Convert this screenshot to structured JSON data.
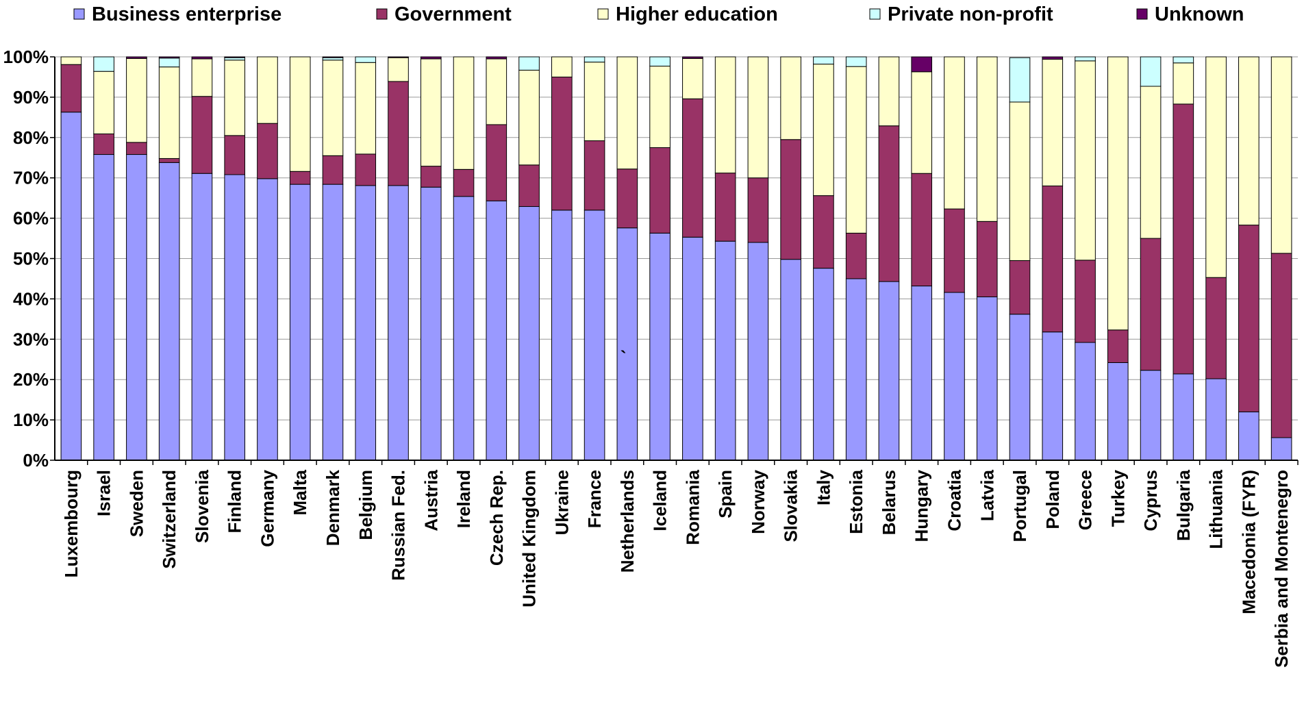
{
  "chart_data": {
    "type": "bar",
    "stacked": true,
    "percent": true,
    "categories": [
      "Luxembourg",
      "Israel",
      "Sweden",
      "Switzerland",
      "Slovenia",
      "Finland",
      "Germany",
      "Malta",
      "Denmark",
      "Belgium",
      "Russian Fed.",
      "Austria",
      "Ireland",
      "Czech Rep.",
      "United Kingdom",
      "Ukraine",
      "France",
      "Netherlands",
      "Iceland",
      "Romania",
      "Spain",
      "Norway",
      "Slovakia",
      "Italy",
      "Estonia",
      "Belarus",
      "Hungary",
      "Croatia",
      "Latvia",
      "Portugal",
      "Poland",
      "Greece",
      "Turkey",
      "Cyprus",
      "Bulgaria",
      "Lithuania",
      "Macedonia (FYR)",
      "Serbia and Montenegro"
    ],
    "series": [
      {
        "name": "Business enterprise",
        "color": "#9999ff",
        "values": [
          86.3,
          75.8,
          75.8,
          73.8,
          71.1,
          70.8,
          69.8,
          68.4,
          68.4,
          68.1,
          68.1,
          67.7,
          65.4,
          64.3,
          62.9,
          62.0,
          62.0,
          57.6,
          56.3,
          55.3,
          54.3,
          54.0,
          49.8,
          47.6,
          45.0,
          44.3,
          43.2,
          41.6,
          40.5,
          36.2,
          31.8,
          29.2,
          24.2,
          22.3,
          21.4,
          20.2,
          12.0,
          5.6
        ]
      },
      {
        "name": "Government",
        "color": "#993366",
        "values": [
          11.8,
          5.1,
          3.0,
          1.0,
          19.1,
          9.7,
          13.7,
          3.2,
          7.1,
          7.8,
          25.8,
          5.2,
          6.7,
          18.9,
          10.3,
          33.0,
          17.2,
          14.6,
          21.2,
          34.3,
          16.9,
          16.0,
          29.7,
          18.0,
          11.3,
          38.6,
          27.9,
          20.7,
          18.7,
          13.3,
          36.2,
          20.4,
          8.1,
          32.7,
          66.9,
          25.1,
          46.3,
          45.7
        ]
      },
      {
        "name": "Higher education",
        "color": "#ffffcc",
        "values": [
          1.9,
          15.5,
          20.8,
          22.7,
          9.3,
          18.7,
          16.5,
          28.4,
          23.7,
          22.7,
          5.9,
          26.6,
          27.9,
          16.3,
          23.5,
          5.0,
          19.5,
          27.8,
          20.2,
          10.0,
          28.8,
          30.0,
          20.5,
          32.6,
          41.3,
          17.1,
          25.2,
          37.7,
          40.8,
          39.3,
          31.4,
          49.4,
          67.7,
          37.7,
          10.2,
          54.7,
          41.7,
          48.7
        ]
      },
      {
        "name": "Private non-profit",
        "color": "#ccffff",
        "values": [
          0,
          3.6,
          0,
          2.2,
          0,
          0.6,
          0,
          0,
          0.6,
          1.4,
          0,
          0,
          0,
          0,
          3.3,
          0,
          1.3,
          0,
          2.3,
          0,
          0,
          0,
          0,
          1.8,
          2.4,
          0,
          0,
          0,
          0,
          11.0,
          0,
          1.0,
          0,
          7.3,
          1.5,
          0,
          0,
          0
        ]
      },
      {
        "name": "Unknown",
        "color": "#660066",
        "values": [
          0,
          0,
          0.4,
          0.3,
          0.5,
          0.2,
          0,
          0,
          0.2,
          0,
          0.2,
          0.5,
          0,
          0.5,
          0,
          0,
          0,
          0,
          0,
          0.4,
          0,
          0,
          0,
          0,
          0,
          0,
          3.7,
          0,
          0,
          0,
          0.6,
          0,
          0,
          0,
          0,
          0,
          0,
          0
        ]
      }
    ],
    "yaxis": {
      "ylim": [
        0,
        100
      ],
      "ticks": [
        0,
        10,
        20,
        30,
        40,
        50,
        60,
        70,
        80,
        90,
        100
      ],
      "tick_labels": [
        "0%",
        "10%",
        "20%",
        "30%",
        "40%",
        "50%",
        "60%",
        "70%",
        "80%",
        "90%",
        "100%"
      ]
    },
    "grid": true,
    "legend": {
      "position": "top",
      "labels": [
        "Business enterprise",
        "Government",
        "Higher education",
        "Private non-profit",
        "Unknown"
      ]
    },
    "annotations": [
      {
        "text": "`",
        "x": "Netherlands",
        "y": 24
      }
    ],
    "title": "",
    "xlabel": "",
    "ylabel": ""
  }
}
